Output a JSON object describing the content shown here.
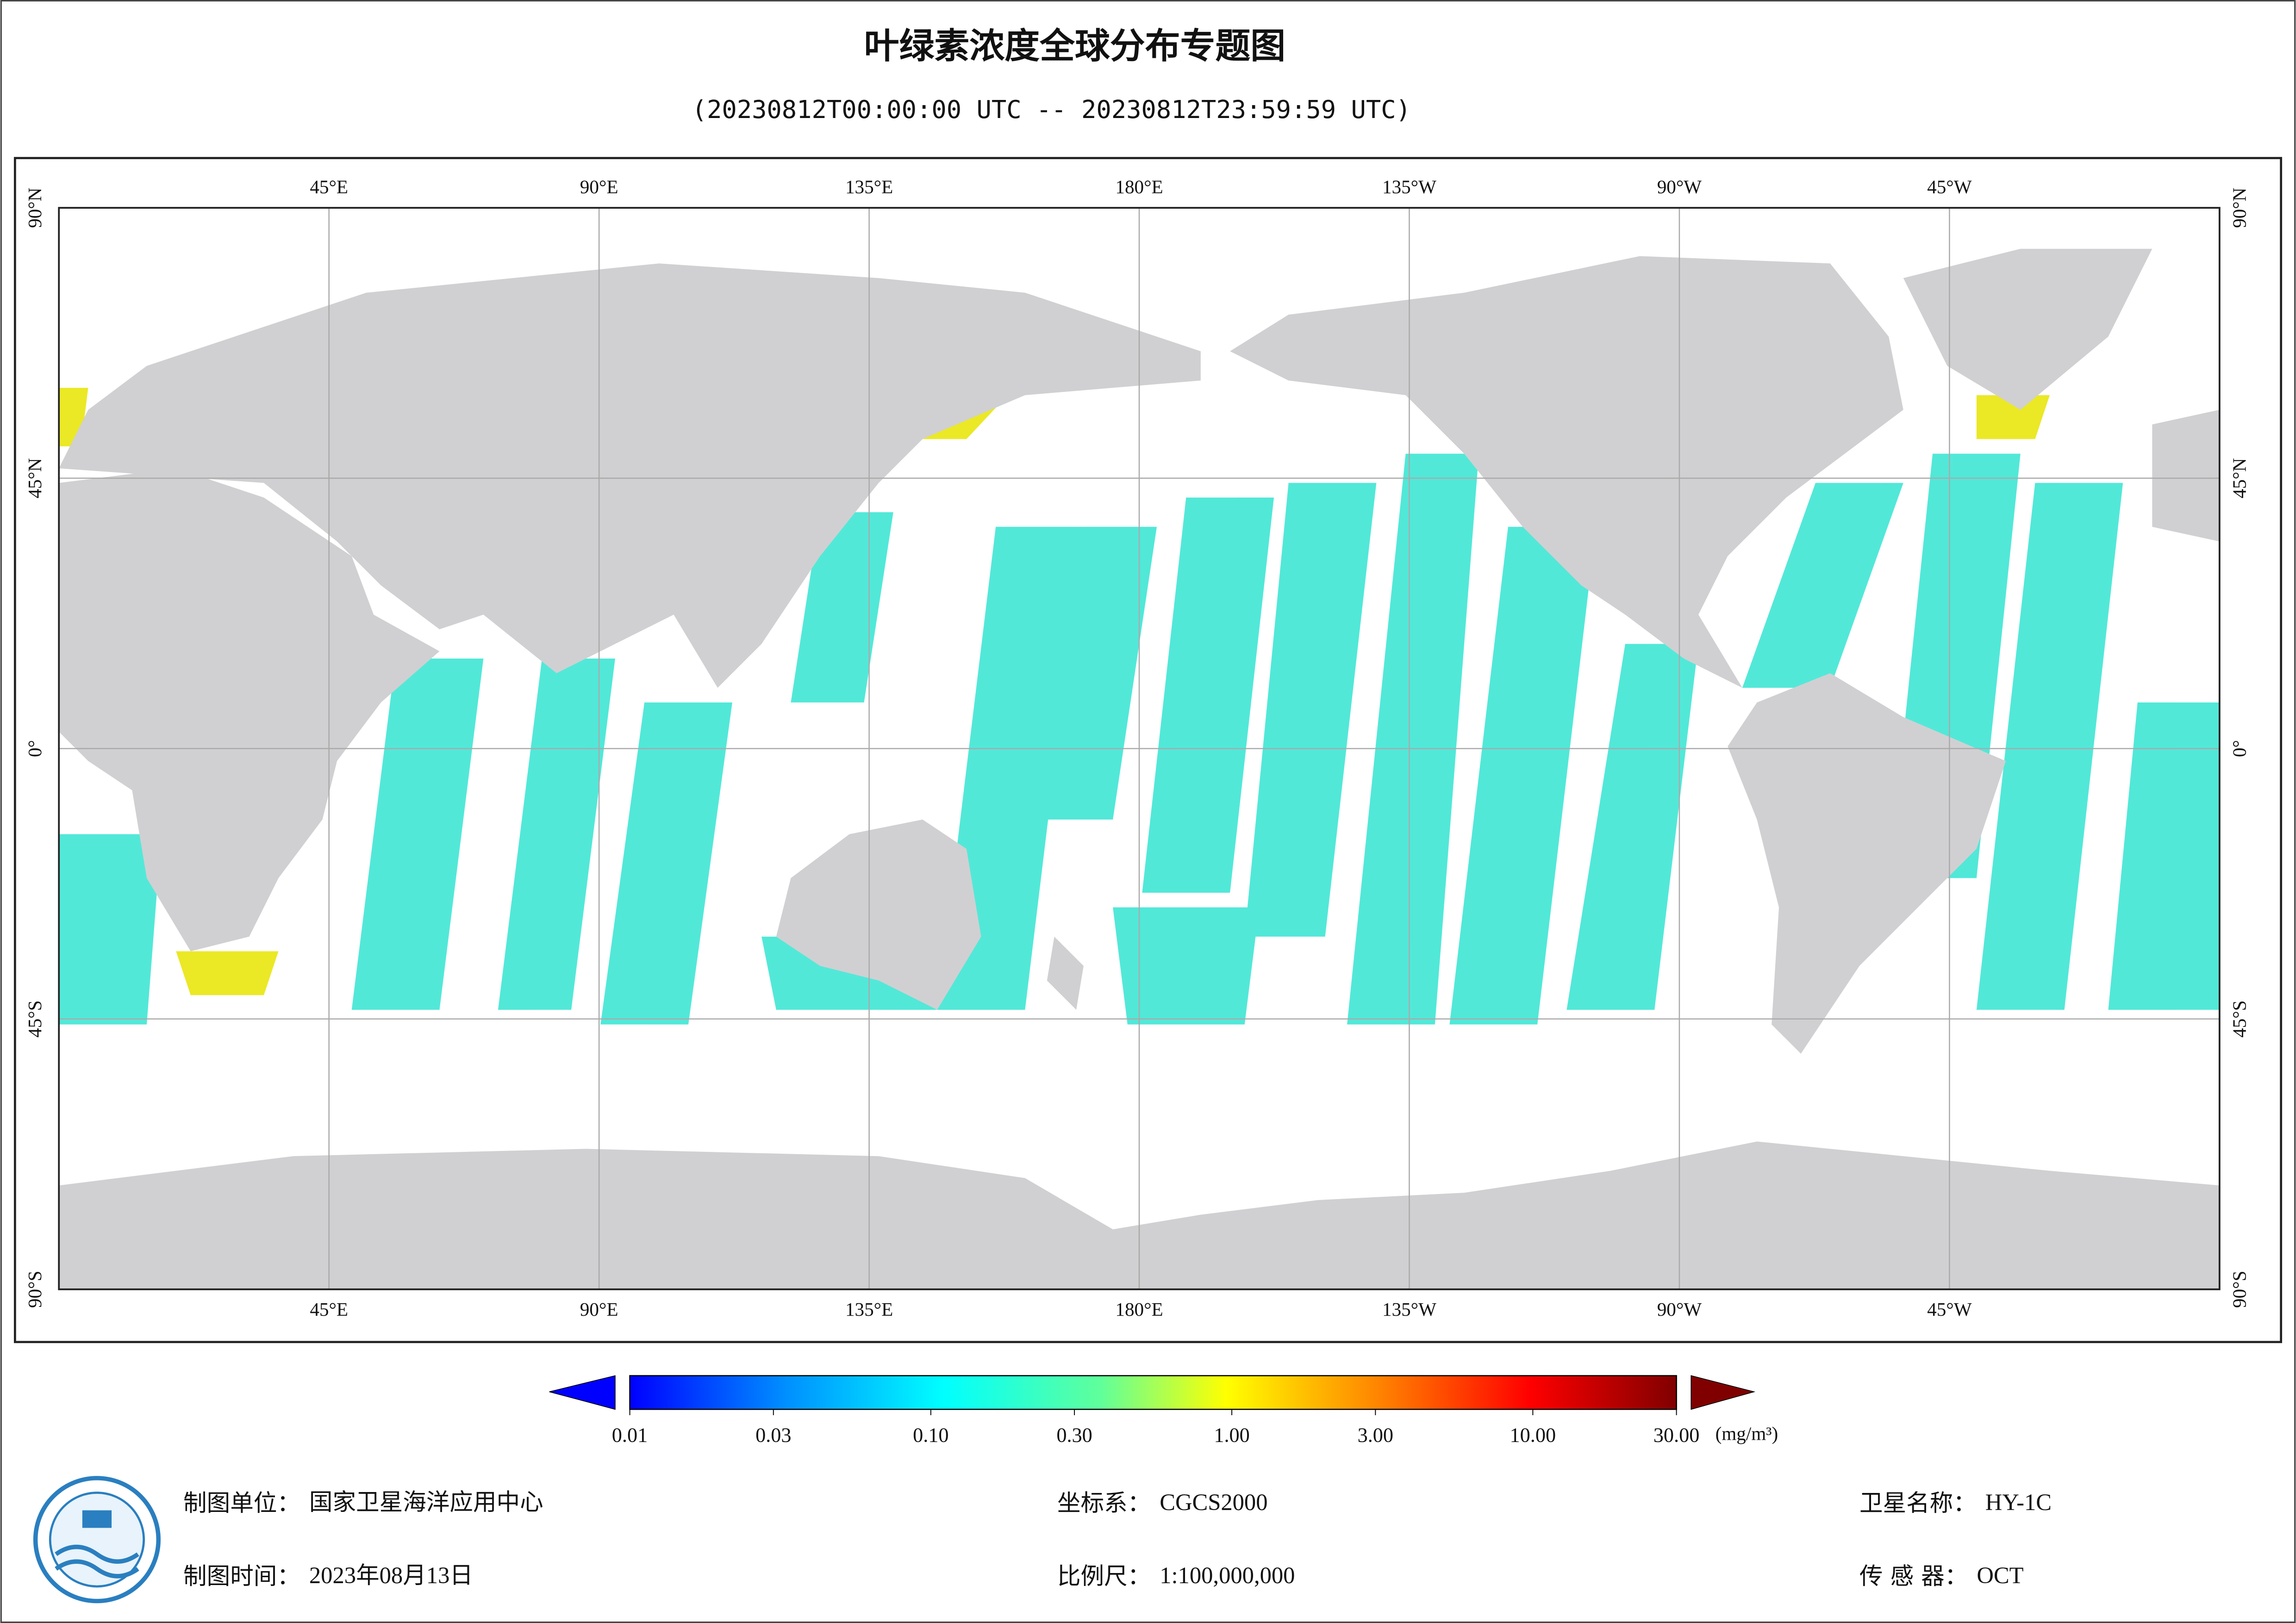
{
  "header": {
    "title": "叶绿素浓度全球分布专题图",
    "subtitle": "(20230812T00:00:00 UTC -- 20230812T23:59:59 UTC)"
  },
  "map": {
    "xlim": [
      0,
      360
    ],
    "ylim": [
      -90,
      90
    ],
    "grid": true,
    "lon_ticks": [
      {
        "value": 45,
        "label": "45°E"
      },
      {
        "value": 90,
        "label": "90°E"
      },
      {
        "value": 135,
        "label": "135°E"
      },
      {
        "value": 180,
        "label": "180°E"
      },
      {
        "value": 225,
        "label": "135°W"
      },
      {
        "value": 270,
        "label": "90°W"
      },
      {
        "value": 315,
        "label": "45°W"
      }
    ],
    "lat_ticks": [
      {
        "value": 90,
        "label": "90°N"
      },
      {
        "value": 45,
        "label": "45°N"
      },
      {
        "value": 0,
        "label": "0°"
      },
      {
        "value": -45,
        "label": "45°S"
      },
      {
        "value": -90,
        "label": "90°S"
      }
    ]
  },
  "colorbar": {
    "scale": "log",
    "clim": [
      0.01,
      30
    ],
    "ticks": [
      {
        "value": 0.01,
        "label": "0.01"
      },
      {
        "value": 0.03,
        "label": "0.03"
      },
      {
        "value": 0.1,
        "label": "0.10"
      },
      {
        "value": 0.3,
        "label": "0.30"
      },
      {
        "value": 1,
        "label": "1.00"
      },
      {
        "value": 3,
        "label": "3.00"
      },
      {
        "value": 10,
        "label": "10.00"
      },
      {
        "value": 30,
        "label": "30.00"
      }
    ],
    "unit": "(mg/m³)"
  },
  "footer": {
    "items": [
      {
        "label": "制图单位：",
        "value": "国家卫星海洋应用中心"
      },
      {
        "label": "制图时间：",
        "value": "2023年08月13日"
      },
      {
        "label": "坐标系：",
        "value": "CGCS2000"
      },
      {
        "label": "比例尺：",
        "value": "1:100,000,000"
      },
      {
        "label": "卫星名称：",
        "value": "HY-1C"
      },
      {
        "label": "传 感 器：",
        "value": "OCT"
      }
    ]
  }
}
